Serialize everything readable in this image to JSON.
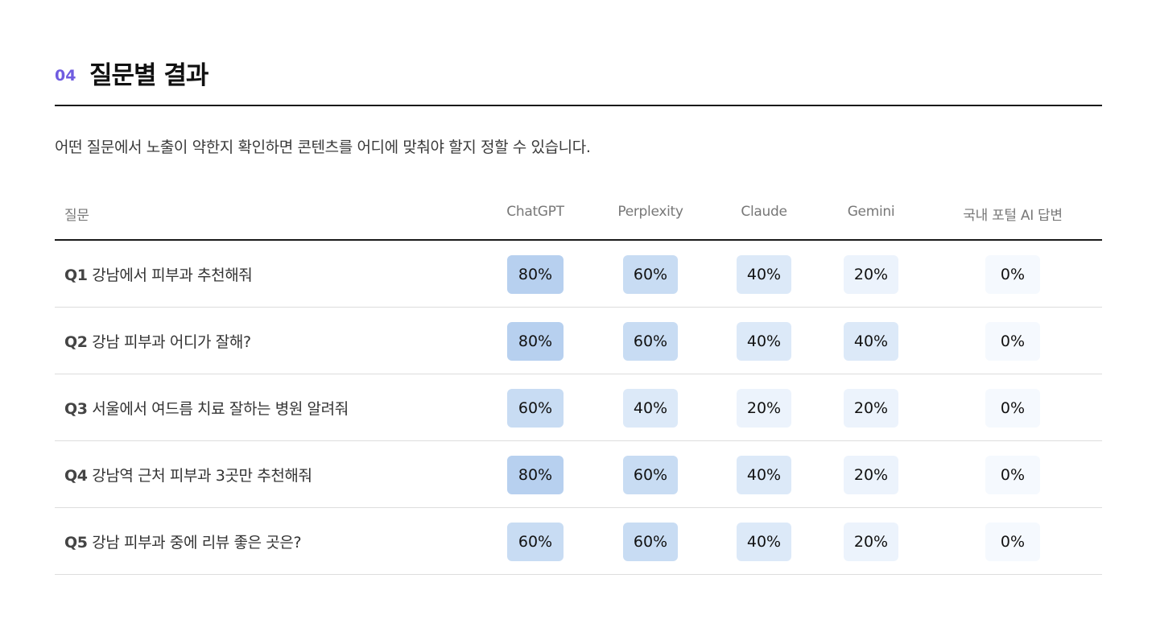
{
  "section": {
    "number": "04",
    "title": "질문별 결과"
  },
  "description": "어떤 질문에서 노출이 약한지 확인하면 콘텐츠를 어디에 맞춰야 할지 정할 수 있습니다.",
  "table": {
    "columns": [
      "질문",
      "ChatGPT",
      "Perplexity",
      "Claude",
      "Gemini",
      "국내 포털 AI 답변"
    ],
    "rows": [
      {
        "id": "Q1",
        "text": "강남에서 피부과 추천해줘",
        "values": [
          "80%",
          "60%",
          "40%",
          "20%",
          "0%"
        ],
        "levels": [
          80,
          60,
          40,
          20,
          0
        ]
      },
      {
        "id": "Q2",
        "text": "강남 피부과 어디가 잘해?",
        "values": [
          "80%",
          "60%",
          "40%",
          "40%",
          "0%"
        ],
        "levels": [
          80,
          60,
          40,
          40,
          0
        ]
      },
      {
        "id": "Q3",
        "text": "서울에서 여드름 치료 잘하는 병원 알려줘",
        "values": [
          "60%",
          "40%",
          "20%",
          "20%",
          "0%"
        ],
        "levels": [
          60,
          40,
          20,
          20,
          0
        ]
      },
      {
        "id": "Q4",
        "text": "강남역 근처 피부과 3곳만 추천해줘",
        "values": [
          "80%",
          "60%",
          "40%",
          "20%",
          "0%"
        ],
        "levels": [
          80,
          60,
          40,
          20,
          0
        ]
      },
      {
        "id": "Q5",
        "text": "강남 피부과 중에 리뷰 좋은 곳은?",
        "values": [
          "60%",
          "60%",
          "40%",
          "20%",
          "0%"
        ],
        "levels": [
          60,
          60,
          40,
          20,
          0
        ]
      }
    ]
  },
  "colors": {
    "accent": "#6f5ce0",
    "level_80": "#b7d0ef",
    "level_60": "#c8dcf3",
    "level_40": "#dce9f8",
    "level_20": "#ecf3fc",
    "level_0": "#f5f9fe"
  }
}
